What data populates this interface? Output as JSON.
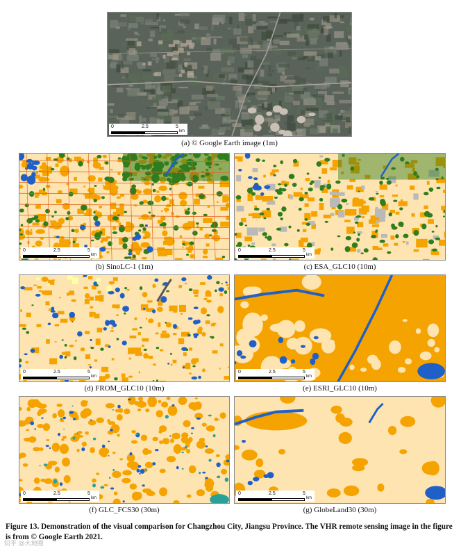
{
  "colors": {
    "impervious": "#f5a300",
    "cropland": "#fde4b0",
    "forest": "#2f7d1c",
    "water": "#1f5fc8",
    "bareland": "#b9b9b9",
    "road_line": "#e0661e",
    "satellite_base": "#59635a"
  },
  "scale_bar": {
    "ticks": [
      "0",
      "2.5",
      "5"
    ],
    "unit": "km"
  },
  "panels": [
    {
      "id": "a",
      "caption": "(a) © Google Earth image (1m)"
    },
    {
      "id": "b",
      "caption": "(b) SinoLC-1 (1m)"
    },
    {
      "id": "c",
      "caption": "(c) ESA_GLC10 (10m)"
    },
    {
      "id": "d",
      "caption": "(d) FROM_GLC10 (10m)"
    },
    {
      "id": "e",
      "caption": "(e) ESRI_GLC10 (10m)"
    },
    {
      "id": "f",
      "caption": "(f) GLC_FCS30 (30m)"
    },
    {
      "id": "g",
      "caption": "(g) GlobeLand30 (30m)"
    }
  ],
  "figure_caption": "Figure 13. Demonstration of the visual comparison for Changzhou City, Jiangsu Province. The VHR remote sensing image in the figure is from © Google Earth 2021.",
  "watermark": "知乎 @大地圈"
}
